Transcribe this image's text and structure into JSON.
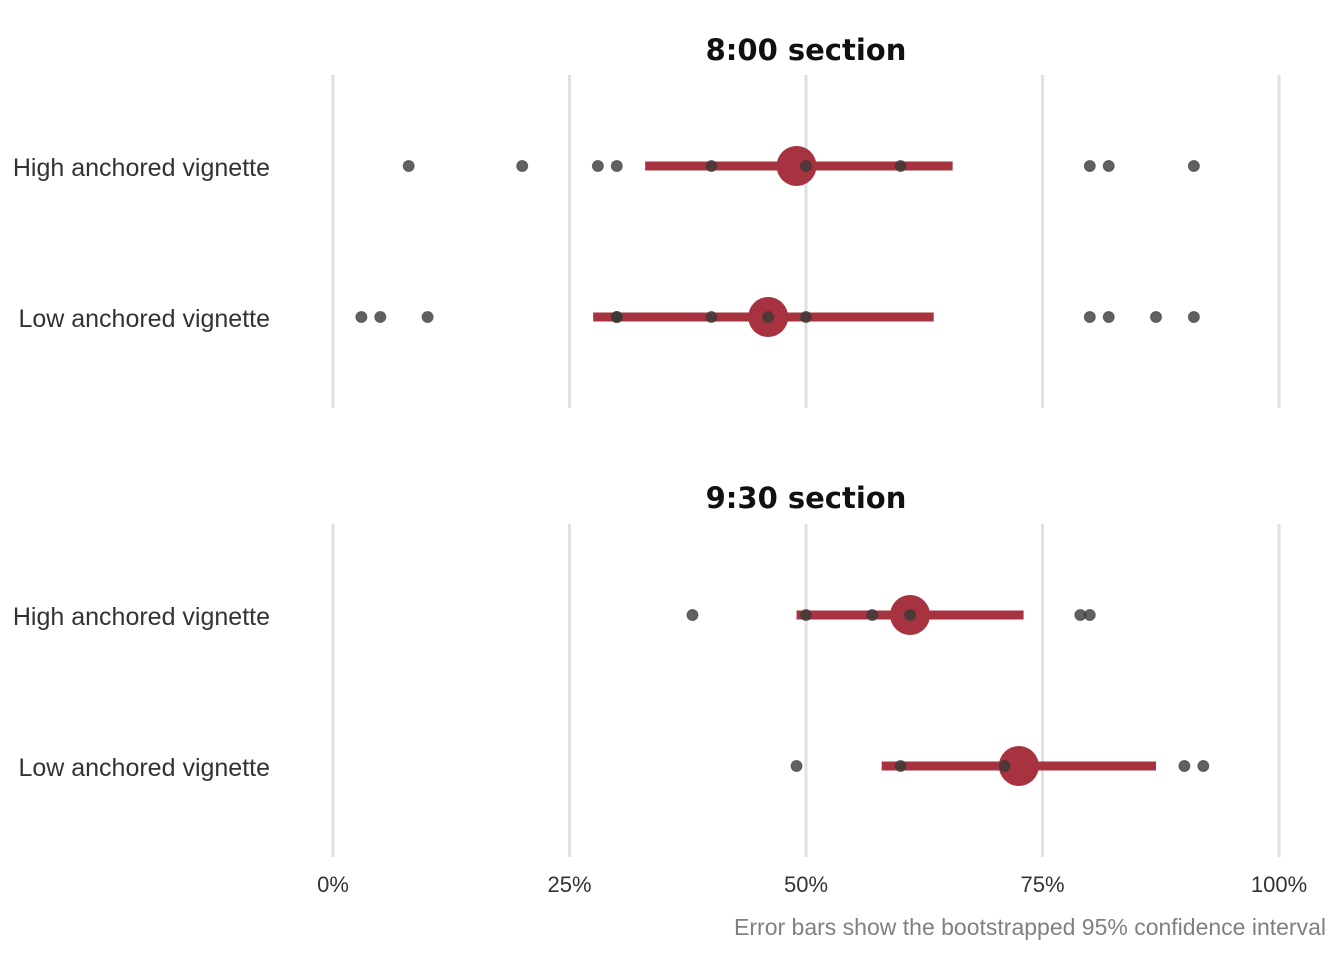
{
  "caption": "Error bars show the bootstrapped 95% confidence interval",
  "colors": {
    "accent": "#a6333f",
    "point": "#3a3a3a",
    "grid": "#e0e0e0"
  },
  "chart_data": {
    "type": "scatter",
    "xlim": [
      0,
      100
    ],
    "ticks": [
      0,
      25,
      50,
      75,
      100
    ],
    "tick_labels": [
      "0%",
      "25%",
      "50%",
      "75%",
      "100%"
    ],
    "grid": true,
    "caption": "Error bars show the bootstrapped 95% confidence interval",
    "panels": [
      {
        "title": "8:00 section",
        "rows": [
          {
            "label": "High anchored vignette",
            "points": [
              8,
              20,
              28,
              30,
              40,
              50,
              60,
              80,
              82,
              91
            ],
            "mean": 49,
            "ci": [
              33,
              65.5
            ]
          },
          {
            "label": "Low anchored vignette",
            "points": [
              3,
              5,
              10,
              30,
              30,
              40,
              46,
              50,
              80,
              82,
              87,
              91
            ],
            "mean": 46,
            "ci": [
              27.5,
              63.5
            ]
          }
        ]
      },
      {
        "title": "9:30 section",
        "rows": [
          {
            "label": "High anchored vignette",
            "points": [
              38,
              50,
              57,
              61,
              79,
              80
            ],
            "mean": 61,
            "ci": [
              49,
              73
            ]
          },
          {
            "label": "Low anchored vignette",
            "points": [
              49,
              60,
              71,
              90,
              92
            ],
            "mean": 72.5,
            "ci": [
              58,
              87
            ]
          }
        ]
      }
    ]
  }
}
